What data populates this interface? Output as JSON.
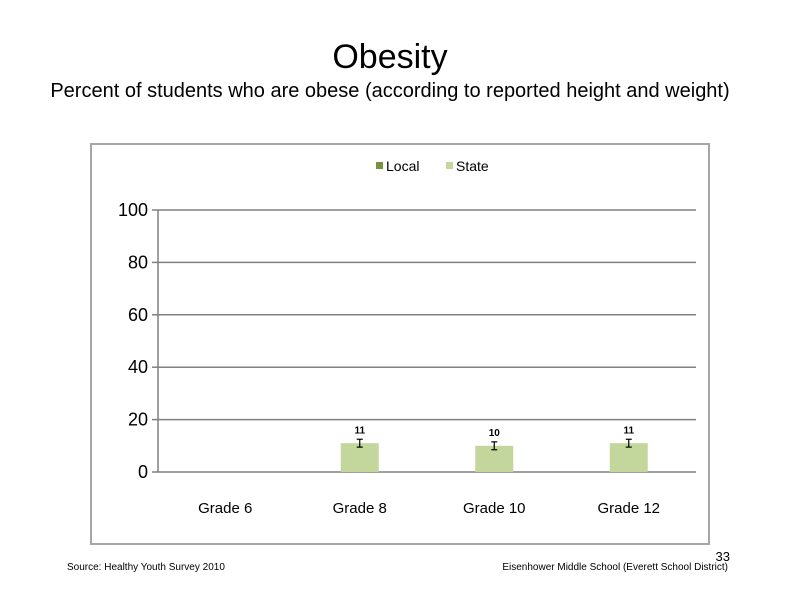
{
  "slide": {
    "title": "Obesity",
    "subtitle": "Percent of students who are obese (according to reported height and weight)",
    "source": "Source: Healthy Youth Survey 2010",
    "school": "Eisenhower Middle  School (Everett School District)",
    "page_number": "33"
  },
  "colors": {
    "local": "#77933c",
    "state": "#c3d69b",
    "gridline": "#808080",
    "frame": "#a6a6a6"
  },
  "chart_data": {
    "type": "bar",
    "categories": [
      "Grade 6",
      "Grade 8",
      "Grade 10",
      "Grade 12"
    ],
    "series": [
      {
        "name": "Local",
        "values": [
          null,
          null,
          null,
          null
        ]
      },
      {
        "name": "State",
        "values": [
          null,
          11,
          10,
          11
        ],
        "error": [
          null,
          1.5,
          1.5,
          1.5
        ]
      }
    ],
    "data_labels": [
      "",
      "11",
      "10",
      "11"
    ],
    "ylim": [
      0,
      100
    ],
    "yticks": [
      "0",
      "20",
      "40",
      "60",
      "80",
      "100"
    ],
    "grid": true,
    "legend_placement": "top",
    "xlabel": "",
    "ylabel": ""
  }
}
